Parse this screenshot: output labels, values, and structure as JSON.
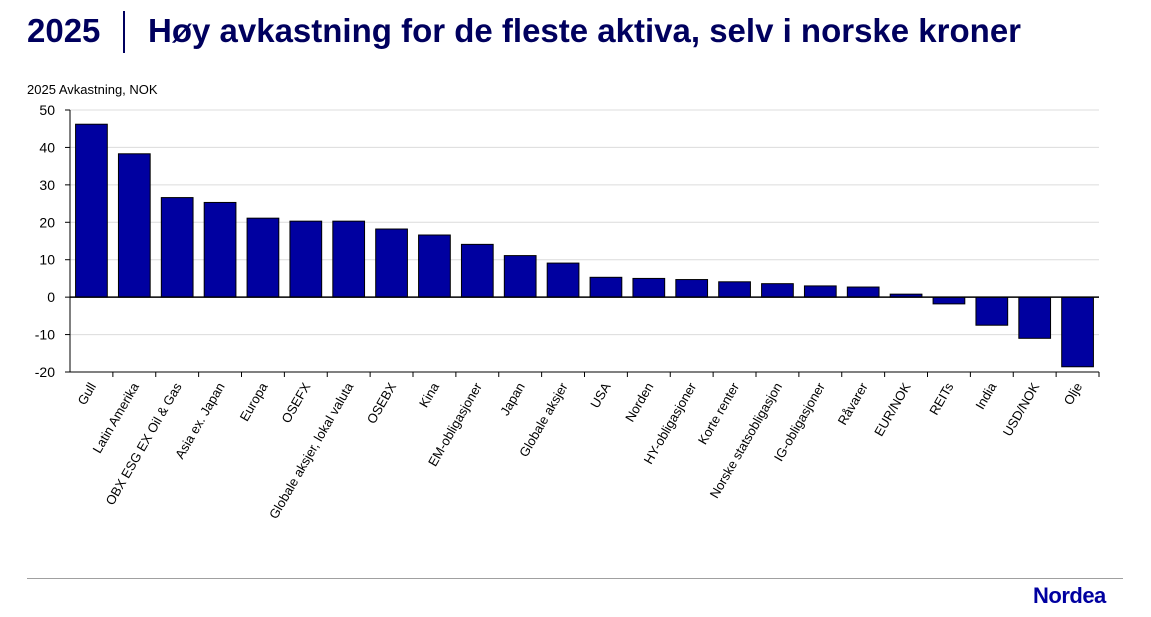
{
  "header": {
    "year": "2025",
    "title": "Høy avkastning for de fleste aktiva, selv i norske kroner"
  },
  "brand": {
    "name": "Nordea"
  },
  "colors": {
    "bar": "#0000a0",
    "title": "#00005e"
  },
  "chart_data": {
    "type": "bar",
    "ylabel": "2025 Avkastning, NOK",
    "ylim": [
      -20,
      50
    ],
    "yticks": [
      "50",
      "40",
      "30",
      "20",
      "10",
      "0",
      "-10",
      "-20"
    ],
    "grid": true,
    "categories": [
      "Gull",
      "Latin Amerika",
      "OBX ESG EX Oil & Gas",
      "Asia ex. Japan",
      "Europa",
      "OSEFX",
      "Globale aksjer, lokal valuta",
      "OSEBX",
      "Kina",
      "EM-obligasjoner",
      "Japan",
      "Globale aksjer",
      "USA",
      "Norden",
      "HY-obligasjoner",
      "Korte renter",
      "Norske statsobligasjon",
      "IG-obligasjoner",
      "Råvarer",
      "EUR/NOK",
      "REITs",
      "India",
      "USD/NOK",
      "Olje"
    ],
    "values": [
      46.2,
      38.3,
      26.6,
      25.3,
      21.1,
      20.3,
      20.3,
      18.2,
      16.6,
      14.1,
      11.1,
      9.1,
      5.3,
      5.0,
      4.7,
      4.1,
      3.6,
      3.0,
      2.7,
      0.8,
      -1.8,
      -7.5,
      -11.0,
      -18.6
    ]
  }
}
